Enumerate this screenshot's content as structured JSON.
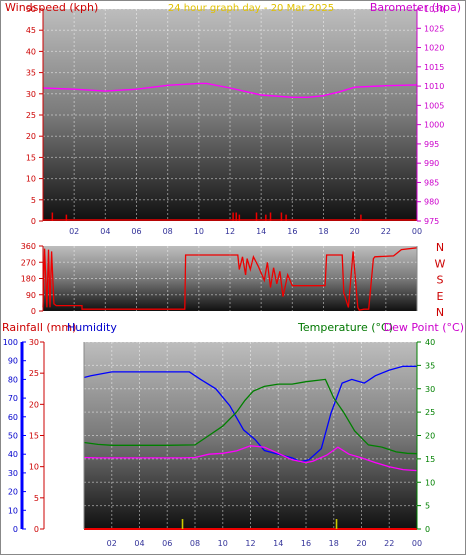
{
  "chart_data": [
    {
      "type": "line",
      "title": "24 hour graph day - 20 Mar 2025",
      "left_axis": {
        "label": "Windspeed (kph)",
        "range": [
          0,
          50
        ],
        "ticks": [
          "0",
          "5",
          "10",
          "15",
          "20",
          "25",
          "30",
          "35",
          "40",
          "45",
          "50"
        ]
      },
      "right_axis": {
        "label": "Barometer (hpa)",
        "range": [
          975,
          1030
        ],
        "ticks": [
          "975",
          "980",
          "985",
          "990",
          "995",
          "1000",
          "1005",
          "1010",
          "1015",
          "1020",
          "1025",
          "1030"
        ]
      },
      "x_ticks": [
        "02",
        "04",
        "06",
        "08",
        "10",
        "12",
        "14",
        "16",
        "18",
        "20",
        "22",
        "00"
      ],
      "series": [
        {
          "name": "Barometer (hpa)",
          "axis": "right",
          "color": "#ff00ff",
          "x": [
            0,
            2,
            4,
            6,
            8,
            10,
            10.5,
            12,
            14,
            16,
            17,
            18,
            19,
            20,
            22,
            24
          ],
          "y": [
            1009.5,
            1009.2,
            1008.7,
            1009.2,
            1010.2,
            1010.7,
            1010.7,
            1009.5,
            1007.7,
            1007.1,
            1007.1,
            1007.5,
            1008.5,
            1009.7,
            1010.1,
            1010.3
          ]
        },
        {
          "name": "Windspeed (kph)",
          "axis": "left",
          "color": "#ee0000",
          "style": "bars",
          "x": [
            0.6,
            1.5,
            12.2,
            12.4,
            12.6,
            13.7,
            14.3,
            14.6,
            15.3,
            15.6,
            20.4
          ],
          "y": [
            2,
            1.5,
            2,
            2,
            1.5,
            2,
            1.5,
            2,
            2,
            1.5,
            1.5
          ]
        }
      ]
    },
    {
      "type": "line",
      "title": "",
      "left_axis": {
        "label": "",
        "range": [
          0,
          360
        ],
        "ticks": [
          "0",
          "90",
          "180",
          "270",
          "360"
        ]
      },
      "right_axis": {
        "label": "",
        "ticks": [
          "N",
          "W",
          "S",
          "E",
          "N"
        ]
      },
      "series": [
        {
          "name": "Wind direction",
          "color": "#ee0000",
          "x": [
            0,
            0.1,
            0.25,
            0.35,
            0.45,
            0.55,
            0.7,
            0.85,
            1,
            1.5,
            2.5,
            2.5,
            9.1,
            9.15,
            12.5,
            12.6,
            12.8,
            13,
            13.1,
            13.3,
            13.5,
            13.8,
            14.2,
            14.4,
            14.6,
            14.8,
            15,
            15.2,
            15.4,
            15.7,
            16,
            16.4,
            18.1,
            18.2,
            19.2,
            19.3,
            19.6,
            19.9,
            20.2,
            20.3,
            20.6,
            20.9,
            21.2,
            21.3,
            22.5,
            23,
            24
          ],
          "y": [
            20,
            345,
            20,
            340,
            20,
            330,
            40,
            30,
            30,
            30,
            30,
            10,
            10,
            310,
            310,
            230,
            300,
            200,
            290,
            230,
            300,
            250,
            170,
            270,
            130,
            240,
            150,
            220,
            80,
            200,
            140,
            140,
            140,
            310,
            310,
            100,
            20,
            330,
            20,
            5,
            10,
            10,
            290,
            300,
            305,
            340,
            350
          ]
        }
      ]
    },
    {
      "type": "line",
      "title": "",
      "left_axes": [
        {
          "label": "Humidity",
          "range": [
            0,
            100
          ],
          "ticks": [
            "0",
            "10",
            "20",
            "30",
            "40",
            "50",
            "60",
            "70",
            "80",
            "90",
            "100"
          ]
        },
        {
          "label": "Rainfall (mm)",
          "range": [
            0,
            30
          ],
          "ticks": [
            "0",
            "5",
            "10",
            "15",
            "20",
            "25",
            "30"
          ]
        }
      ],
      "right_axis": {
        "label": "Temperature (°C)",
        "label2": "Dew Point (°C)",
        "range": [
          0,
          40
        ],
        "ticks": [
          "0",
          "5",
          "10",
          "15",
          "20",
          "25",
          "30",
          "35",
          "40"
        ]
      },
      "x_ticks": [
        "02",
        "04",
        "06",
        "08",
        "10",
        "12",
        "14",
        "16",
        "18",
        "20",
        "22",
        "00"
      ],
      "series": [
        {
          "name": "Humidity",
          "axis": "humidity",
          "color": "#0000ff",
          "x": [
            0,
            0.5,
            2,
            4,
            6,
            7.6,
            8.4,
            9.5,
            10.5,
            11.5,
            12.3,
            13,
            14,
            15,
            15.6,
            16.2,
            17.1,
            17.8,
            18.6,
            19.3,
            20.2,
            21,
            22,
            23,
            24
          ],
          "y": [
            81,
            82,
            84,
            84,
            84,
            84,
            80,
            75,
            66,
            53,
            48,
            42,
            40,
            38,
            36,
            37,
            43,
            62,
            78,
            80,
            78,
            82,
            85,
            87,
            87
          ]
        },
        {
          "name": "Temperature (°C)",
          "axis": "temp",
          "color": "#008000",
          "x": [
            0,
            1,
            2,
            4,
            6,
            8,
            9,
            10,
            11,
            11.6,
            12.2,
            13,
            14,
            15,
            16,
            17.4,
            18,
            18.7,
            19.5,
            20.5,
            21.5,
            22.5,
            23.3,
            24
          ],
          "y": [
            18.5,
            18.1,
            17.9,
            17.9,
            17.9,
            18,
            20,
            22,
            25,
            27.5,
            29.5,
            30.5,
            31,
            31,
            31.5,
            32,
            28,
            25,
            21,
            18,
            17.5,
            16.5,
            16.2,
            16.1
          ]
        },
        {
          "name": "Dew Point (°C)",
          "axis": "temp",
          "color": "#ff00ff",
          "x": [
            0,
            1,
            2,
            4,
            6,
            7,
            8,
            9,
            10,
            11,
            12,
            13,
            14,
            15,
            16,
            16.5,
            17.5,
            18.3,
            19.1,
            20,
            21,
            22,
            23,
            24
          ],
          "y": [
            15.3,
            15.2,
            15.2,
            15.2,
            15.2,
            15.2,
            15.3,
            16,
            16.2,
            16.7,
            17.8,
            17.5,
            16.2,
            14.8,
            14.2,
            14.5,
            15.8,
            17.5,
            16,
            15.2,
            14.2,
            13.3,
            12.7,
            12.5
          ]
        },
        {
          "name": "Rainfall (mm)",
          "axis": "rain",
          "color": "#ee0000",
          "x": [
            0,
            24
          ],
          "y": [
            0,
            0
          ]
        },
        {
          "name": "Rain rate",
          "axis": "rain",
          "color": "#cccc00",
          "style": "bars",
          "x": [
            7.1,
            18.2
          ],
          "y": [
            1.6,
            1.6
          ]
        }
      ]
    }
  ]
}
